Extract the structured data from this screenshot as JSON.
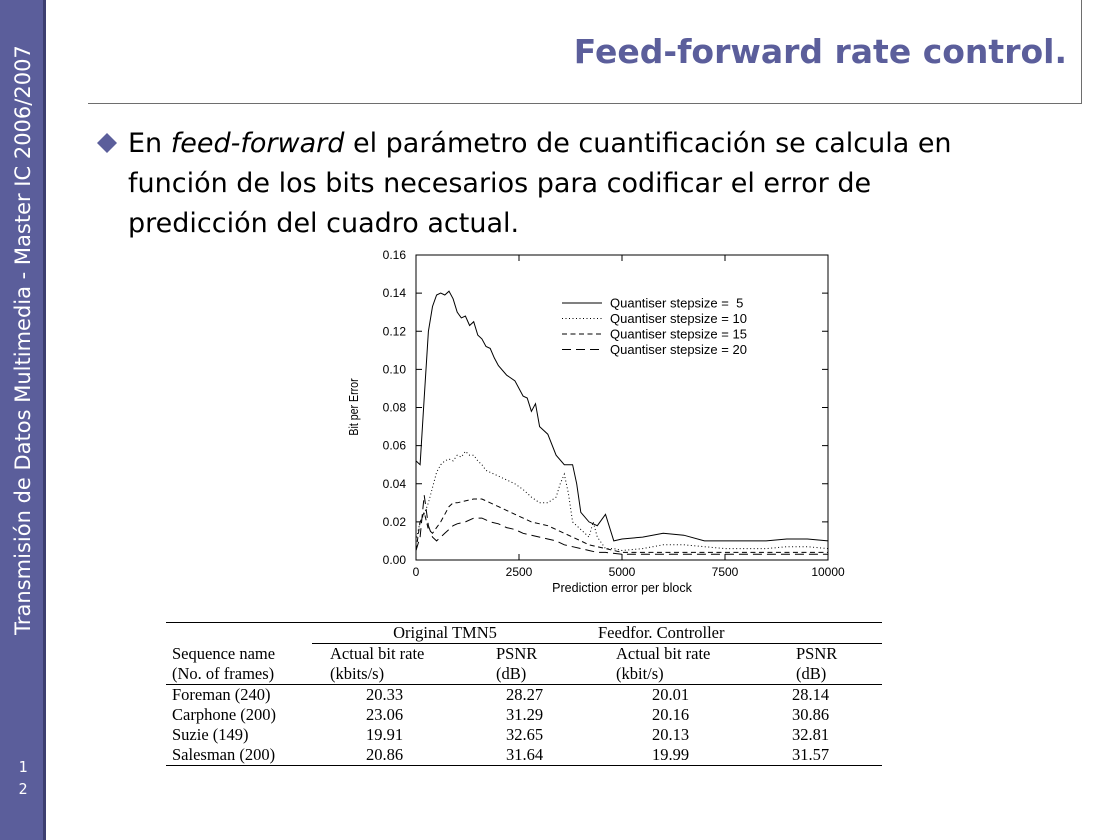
{
  "sidebar": {
    "title": "Transmisión de Datos Multimedia - Master IC 2006/2007",
    "page_number_line1": "1",
    "page_number_line2": "2"
  },
  "slide": {
    "title": "Feed-forward rate control.",
    "bullet": {
      "part1": "En ",
      "part2_italic": "feed-forward",
      "part3": " el parámetro de cuantificación se calcula en función de los bits necesarios para codificar el error de predicción del cuadro actual."
    }
  },
  "colors": {
    "accent": "#5b5e9b"
  },
  "chart_data": {
    "type": "line",
    "xlabel": "Prediction error per block",
    "ylabel": "Bit per Error",
    "xlim": [
      0,
      10000
    ],
    "ylim": [
      0,
      0.16
    ],
    "x_ticks": [
      "0",
      "2500",
      "5000",
      "7500",
      "10000"
    ],
    "y_ticks": [
      "0.00",
      "0.02",
      "0.04",
      "0.06",
      "0.08",
      "0.10",
      "0.12",
      "0.14",
      "0.16"
    ],
    "legend_position": "top-right",
    "series": [
      {
        "name": "Quantiser stepsize =  5",
        "dash": "",
        "points": [
          [
            0,
            0.052
          ],
          [
            100,
            0.05
          ],
          [
            200,
            0.085
          ],
          [
            300,
            0.12
          ],
          [
            400,
            0.133
          ],
          [
            500,
            0.139
          ],
          [
            600,
            0.14
          ],
          [
            700,
            0.139
          ],
          [
            800,
            0.141
          ],
          [
            900,
            0.137
          ],
          [
            1000,
            0.13
          ],
          [
            1100,
            0.127
          ],
          [
            1200,
            0.128
          ],
          [
            1300,
            0.123
          ],
          [
            1400,
            0.125
          ],
          [
            1500,
            0.118
          ],
          [
            1600,
            0.116
          ],
          [
            1700,
            0.112
          ],
          [
            1800,
            0.111
          ],
          [
            1900,
            0.106
          ],
          [
            2000,
            0.102
          ],
          [
            2200,
            0.097
          ],
          [
            2400,
            0.094
          ],
          [
            2600,
            0.086
          ],
          [
            2700,
            0.085
          ],
          [
            2800,
            0.078
          ],
          [
            2900,
            0.082
          ],
          [
            3000,
            0.07
          ],
          [
            3200,
            0.066
          ],
          [
            3400,
            0.055
          ],
          [
            3600,
            0.05
          ],
          [
            3800,
            0.05
          ],
          [
            3900,
            0.04
          ],
          [
            4000,
            0.025
          ],
          [
            4200,
            0.02
          ],
          [
            4400,
            0.018
          ],
          [
            4600,
            0.024
          ],
          [
            4800,
            0.01
          ],
          [
            5000,
            0.011
          ],
          [
            5500,
            0.012
          ],
          [
            6000,
            0.014
          ],
          [
            6500,
            0.013
          ],
          [
            7000,
            0.01
          ],
          [
            7500,
            0.01
          ],
          [
            8000,
            0.01
          ],
          [
            8500,
            0.01
          ],
          [
            9000,
            0.011
          ],
          [
            9500,
            0.011
          ],
          [
            10000,
            0.01
          ]
        ]
      },
      {
        "name": "Quantiser stepsize = 10",
        "dash": "1,2.5",
        "points": [
          [
            0,
            0.01
          ],
          [
            100,
            0.02
          ],
          [
            200,
            0.024
          ],
          [
            300,
            0.03
          ],
          [
            400,
            0.038
          ],
          [
            500,
            0.046
          ],
          [
            600,
            0.05
          ],
          [
            700,
            0.052
          ],
          [
            800,
            0.053
          ],
          [
            900,
            0.052
          ],
          [
            1000,
            0.055
          ],
          [
            1100,
            0.054
          ],
          [
            1200,
            0.057
          ],
          [
            1300,
            0.055
          ],
          [
            1400,
            0.055
          ],
          [
            1500,
            0.052
          ],
          [
            1600,
            0.05
          ],
          [
            1700,
            0.047
          ],
          [
            1800,
            0.046
          ],
          [
            1900,
            0.045
          ],
          [
            2000,
            0.044
          ],
          [
            2200,
            0.042
          ],
          [
            2400,
            0.04
          ],
          [
            2600,
            0.037
          ],
          [
            2800,
            0.033
          ],
          [
            3000,
            0.03
          ],
          [
            3200,
            0.03
          ],
          [
            3400,
            0.033
          ],
          [
            3500,
            0.04
          ],
          [
            3600,
            0.045
          ],
          [
            3700,
            0.035
          ],
          [
            3800,
            0.02
          ],
          [
            4000,
            0.016
          ],
          [
            4200,
            0.012
          ],
          [
            4300,
            0.02
          ],
          [
            4400,
            0.012
          ],
          [
            4600,
            0.006
          ],
          [
            4800,
            0.006
          ],
          [
            5000,
            0.005
          ],
          [
            5500,
            0.006
          ],
          [
            6000,
            0.008
          ],
          [
            6500,
            0.008
          ],
          [
            7000,
            0.007
          ],
          [
            7500,
            0.006
          ],
          [
            8000,
            0.006
          ],
          [
            8500,
            0.006
          ],
          [
            9000,
            0.007
          ],
          [
            9500,
            0.007
          ],
          [
            10000,
            0.006
          ]
        ]
      },
      {
        "name": "Quantiser stepsize = 15",
        "dash": "5,3.5",
        "points": [
          [
            0,
            0.005
          ],
          [
            100,
            0.02
          ],
          [
            200,
            0.025
          ],
          [
            300,
            0.016
          ],
          [
            400,
            0.014
          ],
          [
            500,
            0.017
          ],
          [
            600,
            0.02
          ],
          [
            700,
            0.024
          ],
          [
            800,
            0.028
          ],
          [
            900,
            0.03
          ],
          [
            1000,
            0.03
          ],
          [
            1200,
            0.031
          ],
          [
            1400,
            0.032
          ],
          [
            1600,
            0.032
          ],
          [
            1800,
            0.03
          ],
          [
            2000,
            0.028
          ],
          [
            2200,
            0.026
          ],
          [
            2400,
            0.024
          ],
          [
            2600,
            0.022
          ],
          [
            2800,
            0.02
          ],
          [
            3000,
            0.019
          ],
          [
            3200,
            0.018
          ],
          [
            3400,
            0.016
          ],
          [
            3600,
            0.014
          ],
          [
            3800,
            0.012
          ],
          [
            4000,
            0.01
          ],
          [
            4200,
            0.008
          ],
          [
            4400,
            0.007
          ],
          [
            4600,
            0.006
          ],
          [
            4800,
            0.005
          ],
          [
            5000,
            0.004
          ],
          [
            6000,
            0.004
          ],
          [
            7000,
            0.004
          ],
          [
            8000,
            0.004
          ],
          [
            9000,
            0.004
          ],
          [
            10000,
            0.004
          ]
        ]
      },
      {
        "name": "Quantiser stepsize = 20",
        "dash": "9,5",
        "points": [
          [
            0,
            0.005
          ],
          [
            100,
            0.012
          ],
          [
            200,
            0.034
          ],
          [
            300,
            0.018
          ],
          [
            400,
            0.012
          ],
          [
            500,
            0.01
          ],
          [
            600,
            0.012
          ],
          [
            700,
            0.014
          ],
          [
            800,
            0.016
          ],
          [
            900,
            0.018
          ],
          [
            1000,
            0.019
          ],
          [
            1200,
            0.02
          ],
          [
            1400,
            0.022
          ],
          [
            1600,
            0.022
          ],
          [
            1800,
            0.02
          ],
          [
            2000,
            0.019
          ],
          [
            2200,
            0.017
          ],
          [
            2400,
            0.016
          ],
          [
            2600,
            0.014
          ],
          [
            2800,
            0.013
          ],
          [
            3000,
            0.012
          ],
          [
            3200,
            0.011
          ],
          [
            3400,
            0.01
          ],
          [
            3600,
            0.008
          ],
          [
            3800,
            0.007
          ],
          [
            4000,
            0.006
          ],
          [
            4200,
            0.005
          ],
          [
            4400,
            0.004
          ],
          [
            4600,
            0.004
          ],
          [
            5000,
            0.003
          ],
          [
            6000,
            0.003
          ],
          [
            7000,
            0.003
          ],
          [
            8000,
            0.003
          ],
          [
            9000,
            0.003
          ],
          [
            10000,
            0.003
          ]
        ]
      }
    ]
  },
  "table": {
    "groups": [
      "Original TMN5",
      "Feedfor. Controller"
    ],
    "col_headers": [
      [
        "Sequence name",
        "(No. of frames)"
      ],
      [
        "Actual bit rate",
        "(kbits/s)"
      ],
      [
        "PSNR",
        "(dB)"
      ],
      [
        "Actual bit rate",
        "(kbit/s)"
      ],
      [
        "PSNR",
        "(dB)"
      ]
    ],
    "rows": [
      [
        "Foreman (240)",
        "20.33",
        "28.27",
        "20.01",
        "28.14"
      ],
      [
        "Carphone (200)",
        "23.06",
        "31.29",
        "20.16",
        "30.86"
      ],
      [
        "Suzie (149)",
        "19.91",
        "32.65",
        "20.13",
        "32.81"
      ],
      [
        "Salesman (200)",
        "20.86",
        "31.64",
        "19.99",
        "31.57"
      ]
    ]
  }
}
